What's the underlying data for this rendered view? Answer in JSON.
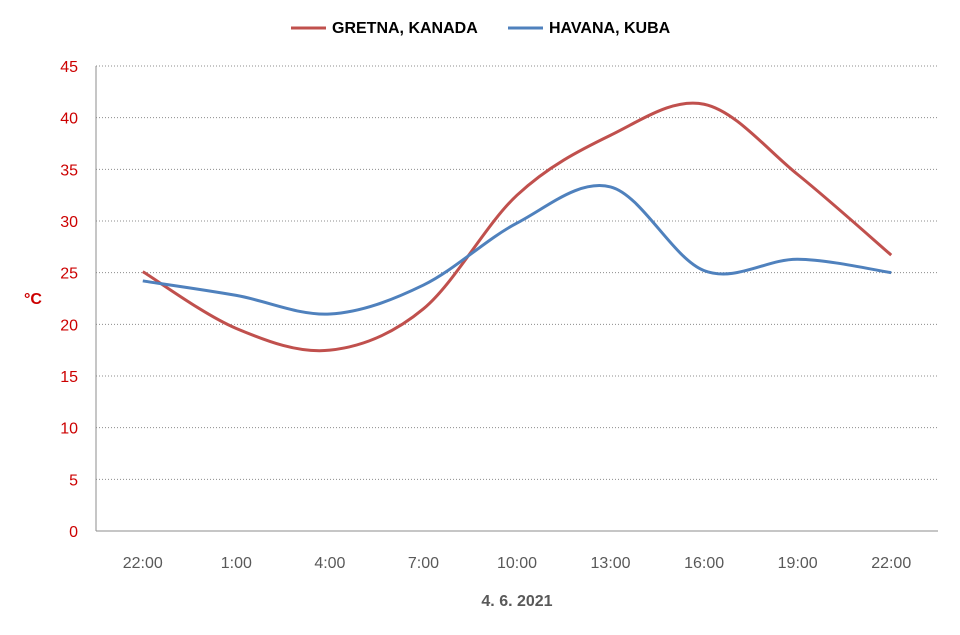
{
  "chart_data": {
    "type": "line",
    "categories": [
      "22:00",
      "1:00",
      "4:00",
      "7:00",
      "10:00",
      "13:00",
      "16:00",
      "19:00",
      "22:00"
    ],
    "series": [
      {
        "name": "GRETNA, KANADA",
        "color": "#c0504d",
        "values": [
          25.1,
          19.6,
          17.5,
          21.5,
          32.5,
          38.3,
          41.3,
          34.5,
          26.7
        ]
      },
      {
        "name": "HAVANA, KUBA",
        "color": "#4f81bd",
        "values": [
          24.2,
          22.8,
          21.0,
          23.8,
          29.8,
          33.3,
          25.2,
          26.3,
          25.0
        ]
      }
    ],
    "xlabel": "4. 6. 2021",
    "ylabel": "°C",
    "ylim": [
      0,
      45
    ],
    "yticks": [
      0,
      5,
      10,
      15,
      20,
      25,
      30,
      35,
      40,
      45
    ],
    "grid": true,
    "legend_position": "top-center"
  }
}
